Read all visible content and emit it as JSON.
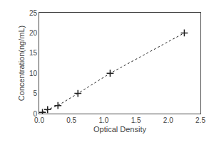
{
  "chart_data": {
    "type": "line",
    "x": [
      0.05,
      0.13,
      0.29,
      0.6,
      1.1,
      2.25
    ],
    "values": [
      0.3,
      1.0,
      2.0,
      5.0,
      10.0,
      20.0
    ],
    "xlabel": "Optical Density",
    "ylabel": "Concentration(ng/mL)",
    "xlim": [
      0,
      2.5
    ],
    "ylim": [
      0,
      25
    ],
    "xticks": [
      {
        "value": 0,
        "label": "0.0"
      },
      0.5,
      {
        "value": 1.0,
        "label": "1.0"
      },
      1.5,
      {
        "value": 2.0,
        "label": "2.0"
      },
      2.5
    ],
    "yticks": [
      0,
      5,
      10,
      15,
      20,
      25
    ],
    "color": "#222222",
    "marker": "plus",
    "line_style": "dotted",
    "grid": false
  }
}
